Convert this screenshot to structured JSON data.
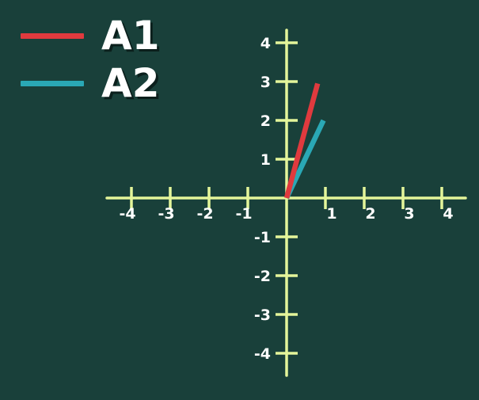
{
  "chart_data": {
    "type": "line",
    "title": "",
    "xlabel": "",
    "ylabel": "",
    "xlim": [
      -4,
      4
    ],
    "ylim": [
      -4,
      4
    ],
    "x_ticks": [
      -4,
      -3,
      -2,
      -1,
      1,
      2,
      3,
      4
    ],
    "y_ticks": [
      4,
      3,
      2,
      1,
      -1,
      -2,
      -3,
      -4
    ],
    "grid": false,
    "legend_position": "top-left",
    "series": [
      {
        "name": "A1",
        "color": "#e03a3e",
        "points": [
          [
            0,
            0
          ],
          [
            0.8,
            2.95
          ]
        ]
      },
      {
        "name": "A2",
        "color": "#2aa8b5",
        "points": [
          [
            0,
            0
          ],
          [
            0.95,
            2.0
          ]
        ]
      }
    ],
    "axis_color": "#e4f59a"
  }
}
